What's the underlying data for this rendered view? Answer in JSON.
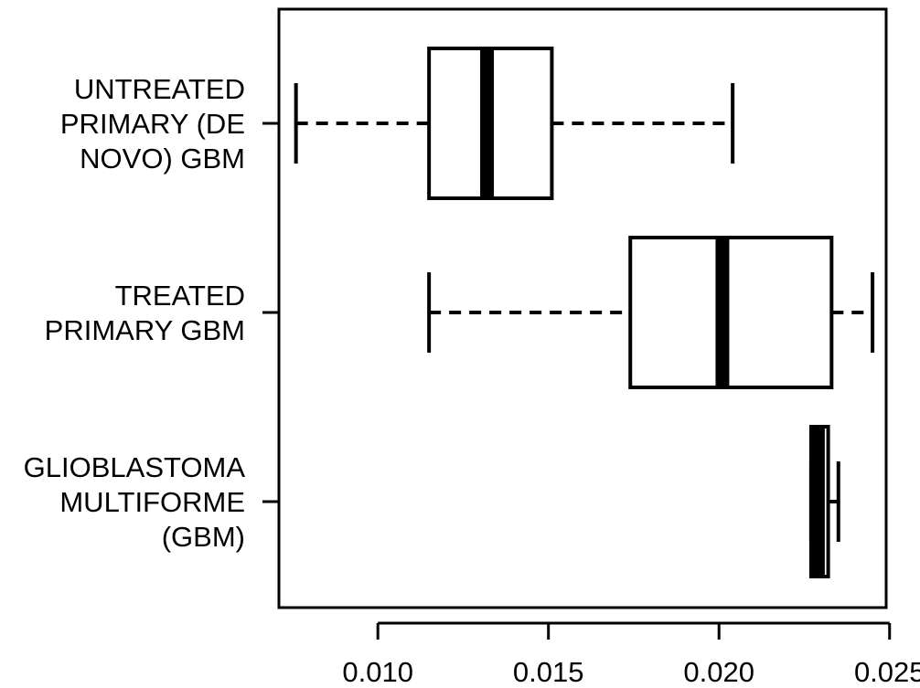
{
  "chart_data": {
    "type": "boxplot",
    "orientation": "horizontal",
    "title": "",
    "xlabel": "",
    "ylabel": "",
    "xlim": [
      0.0071,
      0.0249
    ],
    "x_ticks": [
      "0.010",
      "0.015",
      "0.020",
      "0.025"
    ],
    "x_tick_values": [
      0.01,
      0.015,
      0.02,
      0.025
    ],
    "grid": false,
    "categories": [
      {
        "lines": [
          "UNTREATED",
          "PRIMARY (DE",
          "NOVO) GBM"
        ],
        "whisker_low": 0.0076,
        "q1": 0.0115,
        "median": 0.0132,
        "q3": 0.0151,
        "whisker_high": 0.0204
      },
      {
        "lines": [
          "TREATED",
          "PRIMARY GBM"
        ],
        "whisker_low": 0.0115,
        "q1": 0.0174,
        "median": 0.0201,
        "q3": 0.0233,
        "whisker_high": 0.0245
      },
      {
        "lines": [
          "GLIOBLASTOMA",
          "MULTIFORME",
          "(GBM)"
        ],
        "whisker_low": 0.0227,
        "q1": 0.0227,
        "median": 0.0229,
        "q3": 0.0232,
        "whisker_high": 0.0235
      }
    ]
  }
}
